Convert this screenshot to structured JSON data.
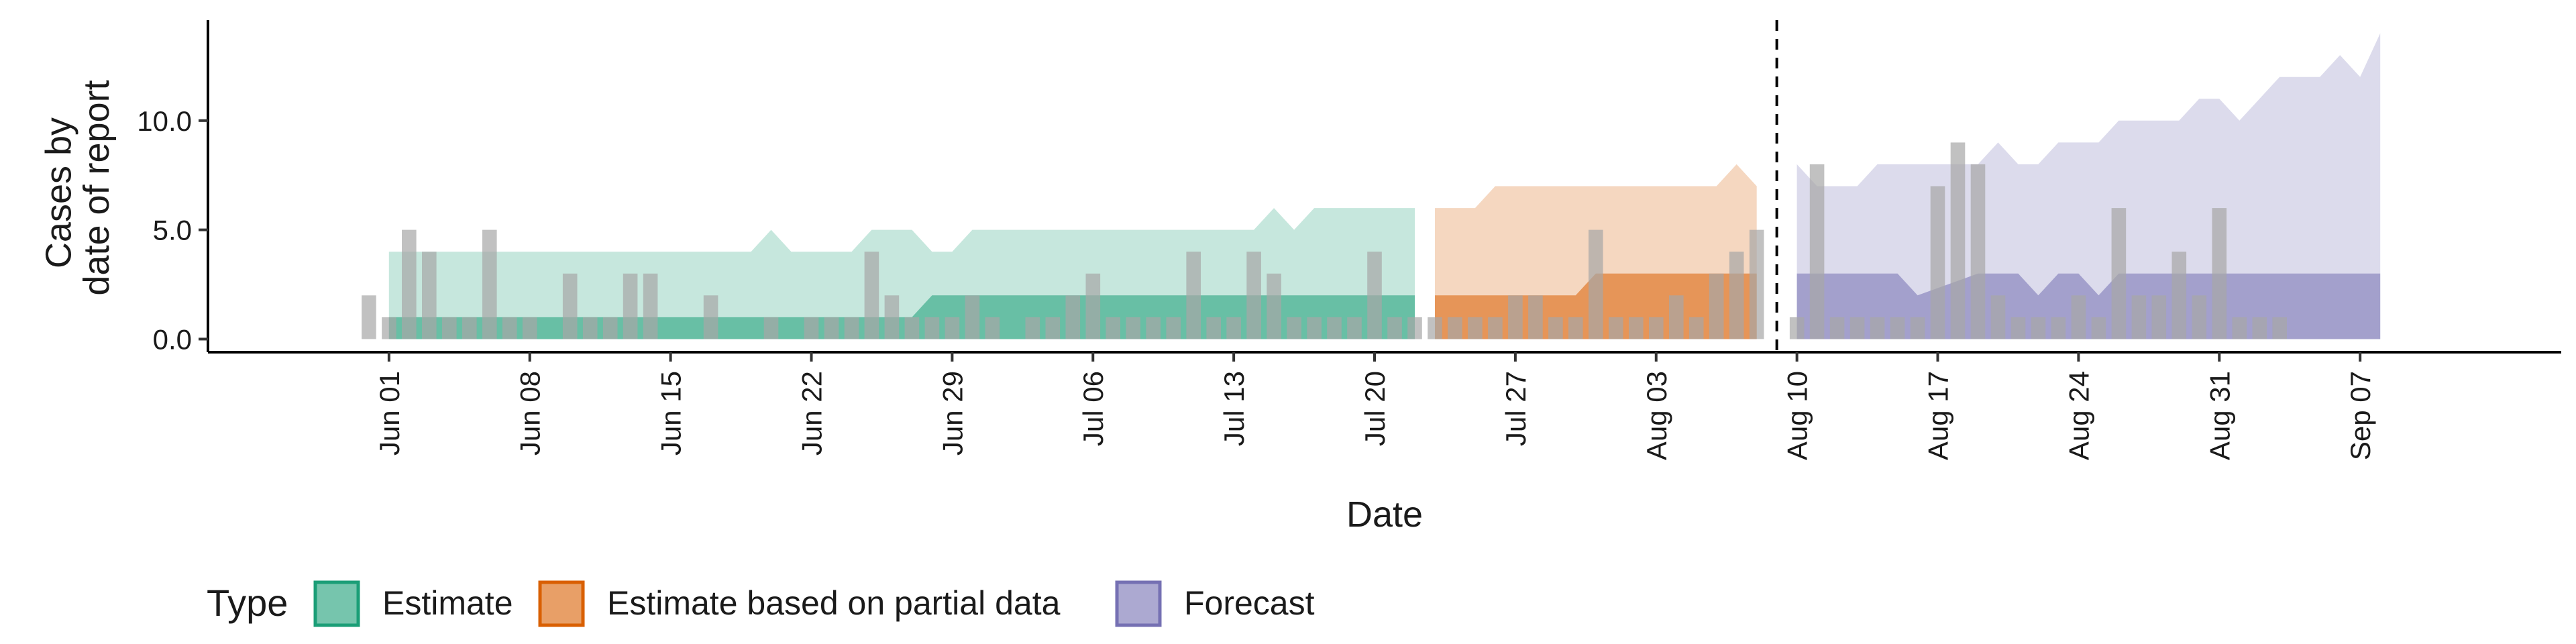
{
  "chart_data": {
    "type": "area",
    "xlabel": "Date",
    "ylabel": [
      "Cases by",
      "date of report"
    ],
    "yticks": [
      "0.0",
      "5.0",
      "10.0"
    ],
    "ytick_values": [
      0,
      5,
      10
    ],
    "ylim": [
      -0.6,
      14.6
    ],
    "xlim": [
      "2020-05-23",
      "2020-09-17"
    ],
    "xticks": [
      {
        "date": "2020-06-01",
        "label": "Jun 01"
      },
      {
        "date": "2020-06-08",
        "label": "Jun 08"
      },
      {
        "date": "2020-06-15",
        "label": "Jun 15"
      },
      {
        "date": "2020-06-22",
        "label": "Jun 22"
      },
      {
        "date": "2020-06-29",
        "label": "Jun 29"
      },
      {
        "date": "2020-07-06",
        "label": "Jul 06"
      },
      {
        "date": "2020-07-13",
        "label": "Jul 13"
      },
      {
        "date": "2020-07-20",
        "label": "Jul 20"
      },
      {
        "date": "2020-07-27",
        "label": "Jul 27"
      },
      {
        "date": "2020-08-03",
        "label": "Aug 03"
      },
      {
        "date": "2020-08-10",
        "label": "Aug 10"
      },
      {
        "date": "2020-08-17",
        "label": "Aug 17"
      },
      {
        "date": "2020-08-24",
        "label": "Aug 24"
      },
      {
        "date": "2020-08-31",
        "label": "Aug 31"
      },
      {
        "date": "2020-09-07",
        "label": "Sep 07"
      }
    ],
    "forecast_date": "2020-08-09",
    "legend": {
      "title": "Type",
      "position": "bottom-left",
      "entries": [
        {
          "label": "Estimate",
          "color": "#1b9e77"
        },
        {
          "label": "Estimate based on partial data",
          "color": "#d95f02"
        },
        {
          "label": "Forecast",
          "color": "#7570b3"
        }
      ]
    },
    "observed_cases": {
      "start_date": "2020-05-31",
      "color": "#a6a6a6",
      "values": [
        2,
        1,
        5,
        4,
        1,
        1,
        5,
        1,
        1,
        0,
        3,
        1,
        1,
        3,
        3,
        0,
        0,
        2,
        0,
        0,
        1,
        0,
        1,
        1,
        1,
        4,
        2,
        1,
        1,
        1,
        2,
        1,
        0,
        1,
        1,
        2,
        3,
        1,
        1,
        1,
        1,
        4,
        1,
        1,
        4,
        3,
        1,
        1,
        1,
        1,
        4,
        1,
        1,
        1,
        1,
        1,
        1,
        2,
        2,
        1,
        1,
        5,
        1,
        1,
        1,
        2,
        1,
        3,
        4,
        5,
        0,
        1,
        8,
        1,
        1,
        1,
        1,
        1,
        7,
        9,
        8,
        2,
        1,
        1,
        1,
        2,
        1,
        6,
        2,
        2,
        4,
        2,
        6,
        1,
        1,
        1
      ]
    },
    "estimate_bands": [
      {
        "type": "Estimate",
        "color": "#1b9e77",
        "dates": [
          "2020-06-01",
          "2020-06-19",
          "2020-06-20",
          "2020-06-21",
          "2020-06-24",
          "2020-06-25",
          "2020-06-27",
          "2020-06-28",
          "2020-06-29",
          "2020-06-30",
          "2020-07-14",
          "2020-07-15",
          "2020-07-16",
          "2020-07-17",
          "2020-07-22"
        ],
        "outer_lower": [
          0,
          0,
          0,
          0,
          0,
          0,
          0,
          0,
          0,
          0,
          0,
          0,
          0,
          0,
          0
        ],
        "outer_upper": [
          4,
          4,
          5,
          4,
          4,
          5,
          5,
          4,
          4,
          5,
          5,
          6,
          5,
          6,
          6
        ],
        "inner_lower": [
          0,
          0,
          0,
          0,
          0,
          0,
          0,
          0,
          0,
          0,
          0,
          0,
          0,
          0,
          0
        ],
        "inner_upper": [
          1,
          1,
          1,
          1,
          1,
          1,
          1,
          2,
          2,
          2,
          2,
          2,
          2,
          2,
          2
        ]
      },
      {
        "type": "Estimate based on partial data",
        "color": "#d95f02",
        "dates": [
          "2020-07-23",
          "2020-07-25",
          "2020-07-26",
          "2020-07-30",
          "2020-07-31",
          "2020-08-06",
          "2020-08-07",
          "2020-08-08"
        ],
        "outer_lower": [
          0,
          0,
          0,
          0,
          0,
          0,
          0,
          0
        ],
        "outer_upper": [
          6,
          6,
          7,
          7,
          7,
          7,
          8,
          7
        ],
        "inner_lower": [
          0,
          0,
          0,
          0,
          0,
          0,
          0,
          0
        ],
        "inner_upper": [
          2,
          2,
          2,
          2,
          3,
          3,
          3,
          3
        ]
      },
      {
        "type": "Forecast",
        "color": "#7570b3",
        "dates": [
          "2020-08-10",
          "2020-08-11",
          "2020-08-13",
          "2020-08-14",
          "2020-08-15",
          "2020-08-16",
          "2020-08-19",
          "2020-08-20",
          "2020-08-21",
          "2020-08-22",
          "2020-08-23",
          "2020-08-24",
          "2020-08-25",
          "2020-08-26",
          "2020-08-27",
          "2020-08-28",
          "2020-08-29",
          "2020-08-30",
          "2020-08-31",
          "2020-09-01",
          "2020-09-02",
          "2020-09-03",
          "2020-09-04",
          "2020-09-05",
          "2020-09-06",
          "2020-09-07",
          "2020-09-08"
        ],
        "outer_lower": [
          0,
          0,
          0,
          0,
          0,
          0,
          0,
          0,
          0,
          0,
          0,
          0,
          0,
          0,
          0,
          0,
          0,
          0,
          0,
          0,
          0,
          0,
          0,
          0,
          0,
          0,
          0
        ],
        "outer_upper": [
          8,
          7,
          7,
          8,
          8,
          8,
          8,
          9,
          8,
          8,
          9,
          9,
          9,
          10,
          10,
          10,
          10,
          11,
          11,
          10,
          11,
          12,
          12,
          12,
          13,
          12,
          14
        ],
        "inner_lower": [
          0,
          0,
          0,
          0,
          0,
          0,
          0,
          0,
          0,
          0,
          0,
          0,
          0,
          0,
          0,
          0,
          0,
          0,
          0,
          0,
          0,
          0,
          0,
          0,
          0,
          0,
          0
        ],
        "inner_upper": [
          3,
          3,
          3,
          3,
          3,
          2,
          3,
          3,
          3,
          2,
          3,
          3,
          2,
          3,
          3,
          3,
          3,
          3,
          3,
          3,
          3,
          3,
          3,
          3,
          3,
          3,
          3
        ]
      }
    ]
  }
}
